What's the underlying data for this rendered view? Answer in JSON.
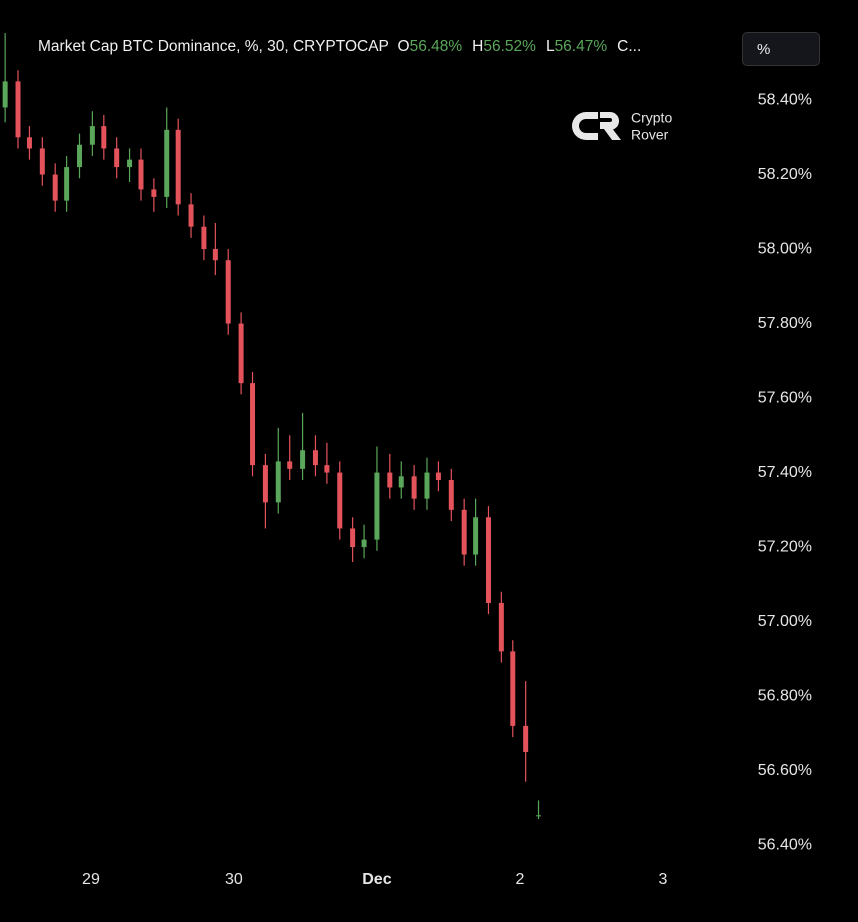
{
  "chart_data": {
    "type": "candlestick",
    "title": "Market Cap BTC Dominance, %, 30, CRYPTOCAP",
    "legend": [
      {
        "key": "O",
        "value": "56.48%"
      },
      {
        "key": "H",
        "value": "56.52%"
      },
      {
        "key": "L",
        "value": "56.47%"
      }
    ],
    "legend_more": "C...",
    "unit_button": "%",
    "up_color": "#5aa65a",
    "down_color": "#e4535b",
    "x": [
      28.4,
      28.49,
      28.57,
      28.66,
      28.75,
      28.83,
      28.92,
      29.01,
      29.09,
      29.18,
      29.27,
      29.35,
      29.44,
      29.53,
      29.61,
      29.7,
      29.79,
      29.87,
      29.96,
      30.05,
      30.13,
      30.22,
      30.31,
      30.39,
      30.48,
      30.57,
      30.65,
      30.74,
      30.83,
      30.91,
      31.0,
      31.09,
      31.17,
      31.26,
      31.35,
      31.43,
      31.52,
      31.61,
      31.69,
      31.78,
      31.87,
      31.95,
      32.04,
      32.13
    ],
    "open": [
      58.38,
      58.45,
      58.3,
      58.27,
      58.2,
      58.13,
      58.22,
      58.28,
      58.33,
      58.27,
      58.22,
      58.24,
      58.16,
      58.14,
      58.32,
      58.12,
      58.06,
      58.0,
      57.97,
      57.8,
      57.64,
      57.42,
      57.32,
      57.43,
      57.41,
      57.46,
      57.42,
      57.4,
      57.25,
      57.2,
      57.22,
      57.4,
      57.36,
      57.39,
      57.33,
      57.4,
      57.38,
      57.3,
      57.18,
      57.28,
      57.05,
      56.92,
      56.72,
      56.48
    ],
    "high": [
      58.58,
      58.48,
      58.33,
      58.3,
      58.23,
      58.25,
      58.31,
      58.37,
      58.36,
      58.3,
      58.27,
      58.27,
      58.19,
      58.38,
      58.35,
      58.15,
      58.09,
      58.07,
      58.0,
      57.83,
      57.67,
      57.45,
      57.52,
      57.5,
      57.56,
      57.5,
      57.48,
      57.43,
      57.28,
      57.26,
      57.47,
      57.45,
      57.43,
      57.42,
      57.44,
      57.43,
      57.41,
      57.33,
      57.33,
      57.31,
      57.08,
      56.95,
      56.84,
      56.52
    ],
    "low": [
      58.34,
      58.27,
      58.24,
      58.17,
      58.1,
      58.1,
      58.19,
      58.25,
      58.24,
      58.19,
      58.18,
      58.13,
      58.1,
      58.11,
      58.09,
      58.03,
      57.97,
      57.93,
      57.77,
      57.61,
      57.39,
      57.25,
      57.29,
      57.38,
      57.38,
      57.39,
      57.37,
      57.22,
      57.16,
      57.17,
      57.19,
      57.33,
      57.33,
      57.3,
      57.3,
      57.35,
      57.27,
      57.15,
      57.15,
      57.02,
      56.89,
      56.69,
      56.57,
      56.47
    ],
    "close": [
      58.45,
      58.3,
      58.27,
      58.2,
      58.13,
      58.22,
      58.28,
      58.33,
      58.27,
      58.22,
      58.24,
      58.16,
      58.14,
      58.32,
      58.12,
      58.06,
      58.0,
      57.97,
      57.8,
      57.64,
      57.42,
      57.32,
      57.43,
      57.41,
      57.46,
      57.42,
      57.4,
      57.25,
      57.2,
      57.22,
      57.4,
      57.36,
      57.39,
      57.33,
      57.4,
      57.38,
      57.3,
      57.18,
      57.28,
      57.05,
      56.92,
      56.72,
      56.65,
      56.48
    ],
    "xlim": [
      28.364,
      33.469
    ],
    "xticks": [
      29,
      30,
      {
        "value": 31,
        "label": "Dec"
      },
      {
        "value": 32,
        "label": "2"
      },
      {
        "value": 33,
        "label": "3"
      }
    ],
    "ylim": [
      56.36,
      58.588
    ],
    "yticks": [
      {
        "value": 56.4,
        "label": "56.40%"
      },
      {
        "value": 56.6,
        "label": "56.60%"
      },
      {
        "value": 56.8,
        "label": "56.80%"
      },
      {
        "value": 57.0,
        "label": "57.00%"
      },
      {
        "value": 57.2,
        "label": "57.20%"
      },
      {
        "value": 57.4,
        "label": "57.40%"
      },
      {
        "value": 57.6,
        "label": "57.60%"
      },
      {
        "value": 57.8,
        "label": "57.80%"
      },
      {
        "value": 58.0,
        "label": "58.00%"
      },
      {
        "value": 58.2,
        "label": "58.20%"
      },
      {
        "value": 58.4,
        "label": "58.40%"
      }
    ]
  },
  "watermark": {
    "line1": "Crypto",
    "line2": "Rover"
  }
}
